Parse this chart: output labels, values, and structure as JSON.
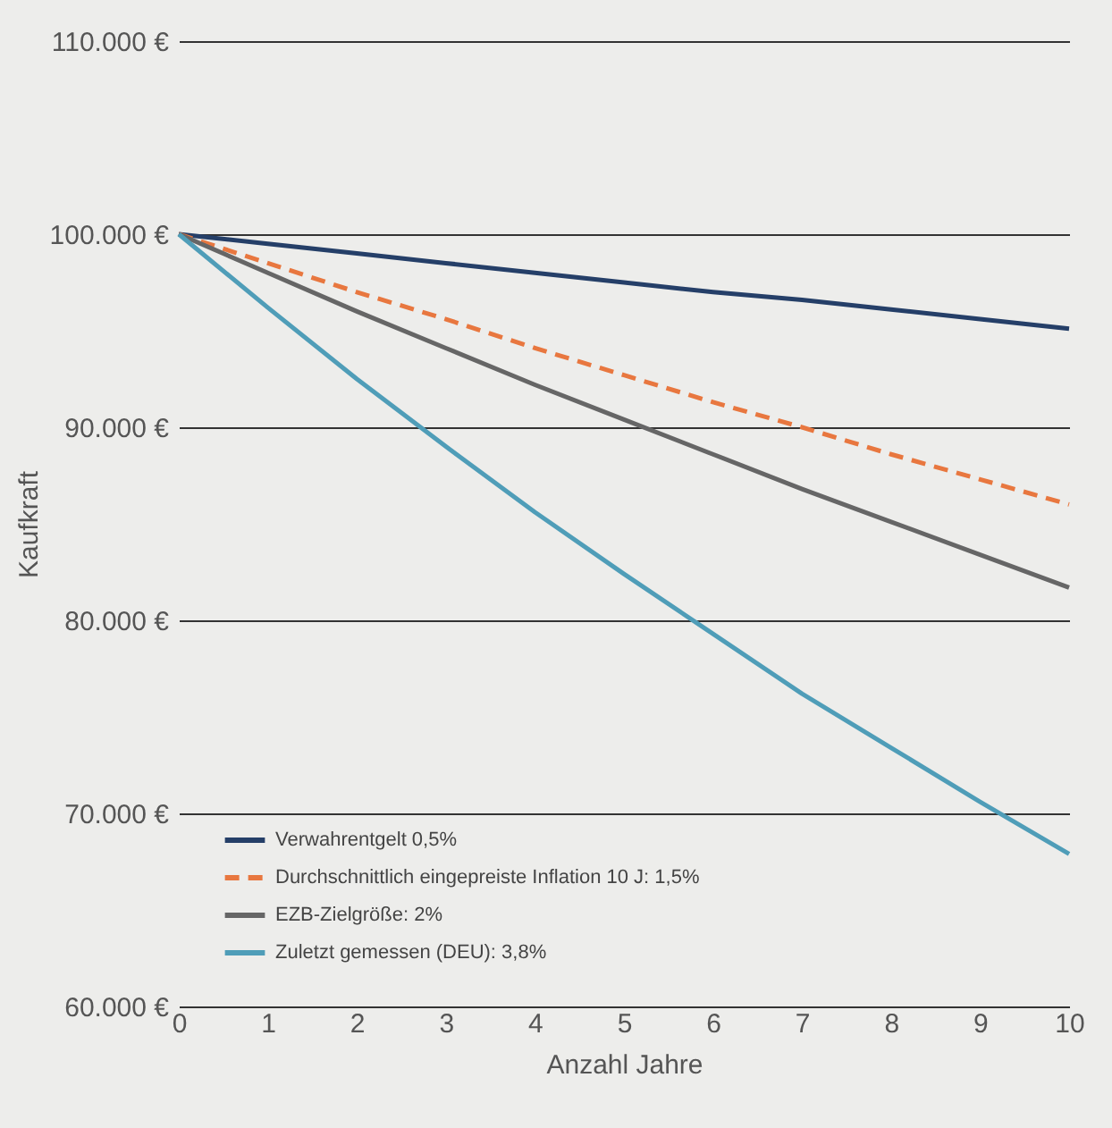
{
  "chart_data": {
    "type": "line",
    "xlabel": "Anzahl Jahre",
    "ylabel": "Kaufkraft",
    "x": [
      0,
      1,
      2,
      3,
      4,
      5,
      6,
      7,
      8,
      9,
      10
    ],
    "series": [
      {
        "name": "Verwahrentgelt 0,5%",
        "color": "#253f68",
        "line_style": "solid",
        "values": [
          100000,
          99500,
          99000,
          98500,
          98000,
          97500,
          97000,
          96600,
          96100,
          95600,
          95100
        ]
      },
      {
        "name": "Durchschnittlich eingepreiste Inflation 10 J: 1,5%",
        "color": "#e8773f",
        "line_style": "dashed",
        "values": [
          100000,
          98500,
          97000,
          95600,
          94100,
          92700,
          91300,
          90000,
          88600,
          87300,
          86000
        ]
      },
      {
        "name": "EZB-Zielgröße: 2%",
        "color": "#666666",
        "line_style": "solid",
        "values": [
          100000,
          98000,
          96000,
          94100,
          92200,
          90400,
          88600,
          86800,
          85100,
          83400,
          81700
        ]
      },
      {
        "name": "Zuletzt gemessen (DEU): 3,8%",
        "color": "#4f9db8",
        "line_style": "solid",
        "values": [
          100000,
          96200,
          92500,
          89000,
          85600,
          82400,
          79300,
          76200,
          73400,
          70600,
          67900
        ]
      }
    ],
    "xlim": [
      0,
      10
    ],
    "xticks": [
      0,
      1,
      2,
      3,
      4,
      5,
      6,
      7,
      8,
      9,
      10
    ],
    "ylim": [
      60000,
      110000
    ],
    "yticks": [
      {
        "value": 60000,
        "label": "60.000 €"
      },
      {
        "value": 70000,
        "label": "70.000 €"
      },
      {
        "value": 80000,
        "label": "80.000 €"
      },
      {
        "value": 90000,
        "label": "90.000 €"
      },
      {
        "value": 100000,
        "label": "100.000 €"
      },
      {
        "value": 110000,
        "label": "110.000 €"
      }
    ],
    "grid": "y",
    "legend": "bottom left",
    "marker": "none"
  }
}
